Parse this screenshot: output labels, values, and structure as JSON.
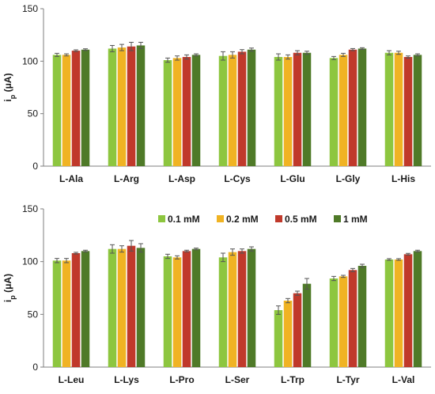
{
  "chart_data": [
    {
      "type": "bar",
      "title": "",
      "xlabel": "",
      "ylabel": "ip (μA)",
      "ylabel_main": "i",
      "ylabel_sub": "p",
      "ylabel_unit": " (μA)",
      "ylim": [
        0,
        150
      ],
      "yticks": [
        "0",
        "50",
        "100",
        "150"
      ],
      "grid": false,
      "show_legend": false,
      "categories": [
        "L-Ala",
        "L-Arg",
        "L-Asp",
        "L-Cys",
        "L-Glu",
        "L-Gly",
        "L-His"
      ],
      "series": [
        {
          "name": "0.1 mM",
          "color": "#8dc63f",
          "values": [
            106,
            112,
            101,
            105,
            104,
            103,
            108
          ],
          "errors": [
            1.5,
            3,
            2,
            4,
            3,
            1.5,
            2
          ]
        },
        {
          "name": "0.2 mM",
          "color": "#f0b323",
          "values": [
            106,
            113,
            103,
            106,
            104,
            106,
            108
          ],
          "errors": [
            1,
            3,
            2,
            3,
            2,
            1.5,
            1.5
          ]
        },
        {
          "name": "0.5 mM",
          "color": "#c0392b",
          "values": [
            110,
            114,
            104,
            109,
            108,
            111,
            104
          ],
          "errors": [
            0.8,
            4,
            2,
            2,
            2,
            1,
            1
          ]
        },
        {
          "name": "1 mM",
          "color": "#4f7a28",
          "values": [
            111,
            115,
            106,
            111,
            108,
            112,
            106
          ],
          "errors": [
            0.8,
            3,
            1,
            1.5,
            1.5,
            0.8,
            1
          ]
        }
      ]
    },
    {
      "type": "bar",
      "title": "",
      "xlabel": "",
      "ylabel": "ip (μA)",
      "ylabel_main": "i",
      "ylabel_sub": "p",
      "ylabel_unit": " (μA)",
      "ylim": [
        0,
        150
      ],
      "yticks": [
        "0",
        "50",
        "100",
        "150"
      ],
      "grid": false,
      "show_legend": true,
      "legend_position": "top-center",
      "categories": [
        "L-Leu",
        "L-Lys",
        "L-Pro",
        "L-Ser",
        "L-Trp",
        "L-Tyr",
        "L-Val"
      ],
      "series": [
        {
          "name": "0.1 mM",
          "color": "#8dc63f",
          "values": [
            101,
            112,
            105,
            104,
            54,
            84,
            102
          ],
          "errors": [
            2,
            4,
            2,
            4,
            4,
            2,
            0.8
          ]
        },
        {
          "name": "0.2 mM",
          "color": "#f0b323",
          "values": [
            101,
            112,
            104,
            109,
            63,
            86,
            102
          ],
          "errors": [
            2,
            3,
            1.5,
            3,
            2,
            1,
            0.8
          ]
        },
        {
          "name": "0.5 mM",
          "color": "#c0392b",
          "values": [
            108,
            115,
            110,
            110,
            70,
            92,
            107
          ],
          "errors": [
            0.8,
            5,
            0.8,
            2,
            2,
            1.5,
            0.8
          ]
        },
        {
          "name": "1 mM",
          "color": "#4f7a28",
          "values": [
            110,
            113,
            112,
            112,
            79,
            96,
            110
          ],
          "errors": [
            0.8,
            4,
            0.8,
            2,
            5,
            1.5,
            0.8
          ]
        }
      ]
    }
  ]
}
